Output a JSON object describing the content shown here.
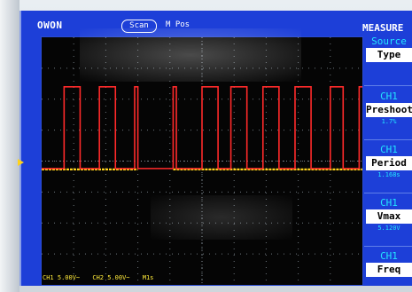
{
  "header": {
    "brand": "OWON",
    "acquire_mode": "Scan",
    "trigger_label": "M Pos",
    "menu_title": "MEASURE"
  },
  "menu": {
    "items": [
      {
        "head": "Source",
        "box": "Type",
        "value": ""
      },
      {
        "head": "CH1",
        "box": "Preshoot",
        "value": "1.7%"
      },
      {
        "head": "CH1",
        "box": "Period",
        "value": "1.168s"
      },
      {
        "head": "CH1",
        "box": "Vmax",
        "value": "5.120V"
      },
      {
        "head": "CH1",
        "box": "Freq",
        "value": ""
      }
    ]
  },
  "status": {
    "ch1": "CH1 5.00V~",
    "ch2": "CH2 5.00V~",
    "timebase": "M1s"
  },
  "colors": {
    "screen_bg": "#1d3fd8",
    "plot_bg": "#050505",
    "trace_ch1": "#ff2a2a",
    "trace_ch2": "#ffd21a",
    "grid": "#9aa6b0",
    "menu_text": "#22e6ff"
  },
  "waveform": {
    "description_values": {
      "high_level_fraction": 0.2,
      "low_level_fraction": 0.53,
      "pulse_starts": [
        0.07,
        0.18,
        0.29,
        0.41,
        0.5,
        0.59,
        0.69,
        0.79,
        0.9,
        0.99
      ],
      "pulse_ends": [
        0.12,
        0.23,
        0.3,
        0.42,
        0.55,
        0.64,
        0.74,
        0.84,
        0.94,
        1.0
      ],
      "gap_start": 0.3,
      "gap_end": 0.41
    }
  }
}
